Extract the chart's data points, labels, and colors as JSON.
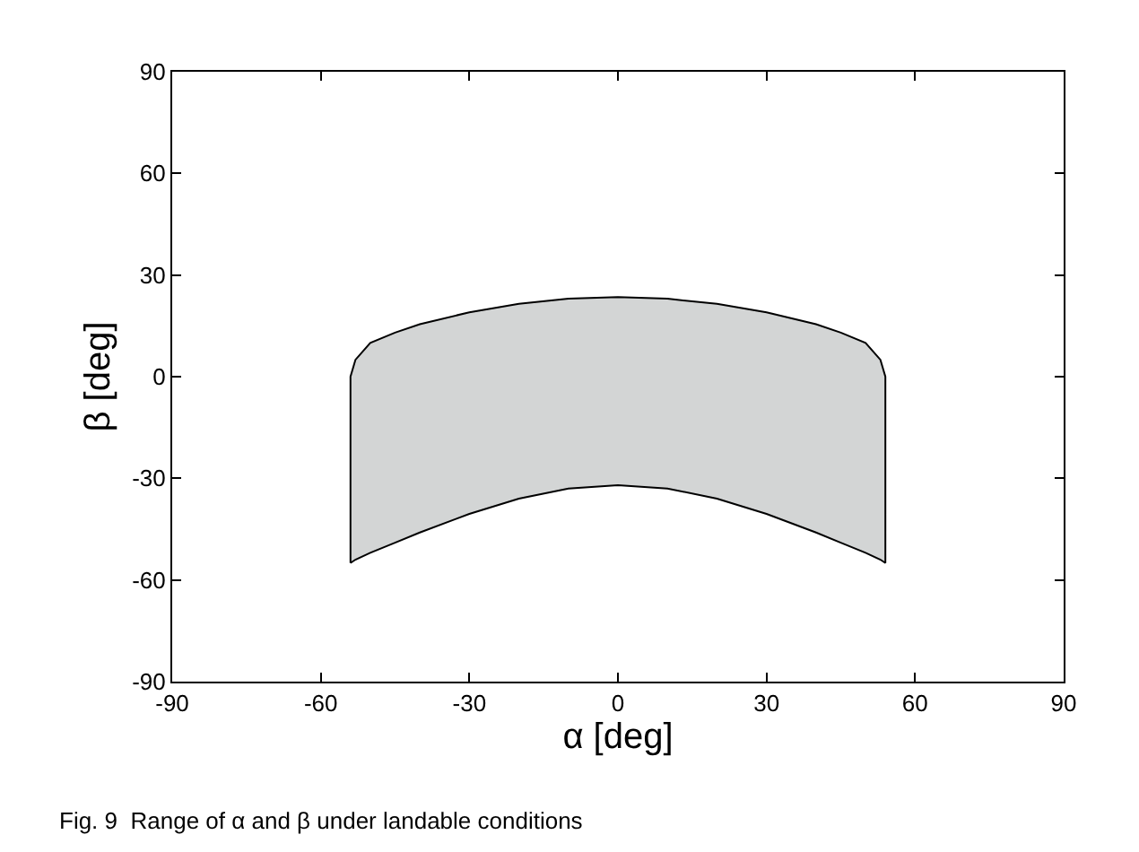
{
  "chart_data": {
    "type": "area",
    "xlabel": "α [deg]",
    "ylabel": "β [deg]",
    "series": [
      {
        "color": "#d3d5d5",
        "x": [
          -54,
          -54,
          -53,
          -50,
          -45,
          -40,
          -30,
          -20,
          -10,
          0,
          10,
          20,
          30,
          40,
          45,
          50,
          53,
          54,
          54,
          53,
          50,
          45,
          40,
          30,
          20,
          10,
          0,
          -10,
          -20,
          -30,
          -40,
          -45,
          -50,
          -53,
          -54
        ],
        "values": [
          -55,
          0,
          5,
          10,
          13,
          15.5,
          19,
          21.5,
          23,
          23.5,
          23,
          21.5,
          19,
          15.5,
          13,
          10,
          5,
          0,
          -55,
          -54,
          -52,
          -49,
          -46,
          -40.5,
          -36,
          -33,
          -32,
          -33,
          -36,
          -40.5,
          -46,
          -49,
          -52,
          -54,
          -55
        ]
      }
    ],
    "xlim": [
      -90,
      90
    ],
    "xticks": [
      -90,
      -60,
      -30,
      0,
      30,
      60,
      90
    ],
    "ylim": [
      -90,
      90
    ],
    "yticks": [
      -90,
      -60,
      -30,
      0,
      30,
      60,
      90
    ],
    "annotations": [
      "Fig. 9  Range of α and β under landable conditions"
    ]
  }
}
